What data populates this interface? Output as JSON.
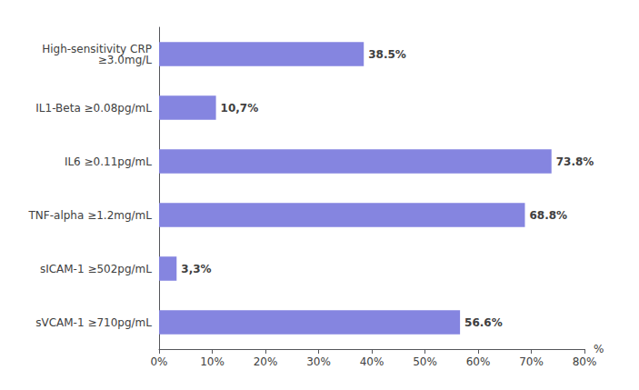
{
  "chart_data": {
    "type": "bar",
    "orientation": "horizontal",
    "categories": [
      "sVCAM-1 ≥710pg/mL",
      "sICAM-1 ≥502pg/mL",
      "TNF-alpha ≥1.2mg/mL",
      "IL6 ≥0.11pg/mL",
      "IL1-Beta ≥0.08pg/mL",
      "High-sensitivity CRP\n≥3.0mg/L"
    ],
    "values": [
      56.6,
      3.3,
      68.8,
      73.8,
      10.7,
      38.5
    ],
    "value_labels": [
      "56.6%",
      "3,3%",
      "68.8%",
      "73.8%",
      "10,7%",
      "38.5%"
    ],
    "data_labels": true,
    "color": "#8585E0",
    "xlabel": "%",
    "xlim": [
      0,
      80
    ],
    "xticks": [
      {
        "value": 0,
        "label": "0%"
      },
      {
        "value": 10,
        "label": "10%"
      },
      {
        "value": 20,
        "label": "20%"
      },
      {
        "value": 30,
        "label": "30%"
      },
      {
        "value": 40,
        "label": "40%"
      },
      {
        "value": 50,
        "label": "50%"
      },
      {
        "value": 60,
        "label": "60%"
      },
      {
        "value": 70,
        "label": "70%"
      },
      {
        "value": 80,
        "label": "80%"
      }
    ],
    "grid": false
  }
}
